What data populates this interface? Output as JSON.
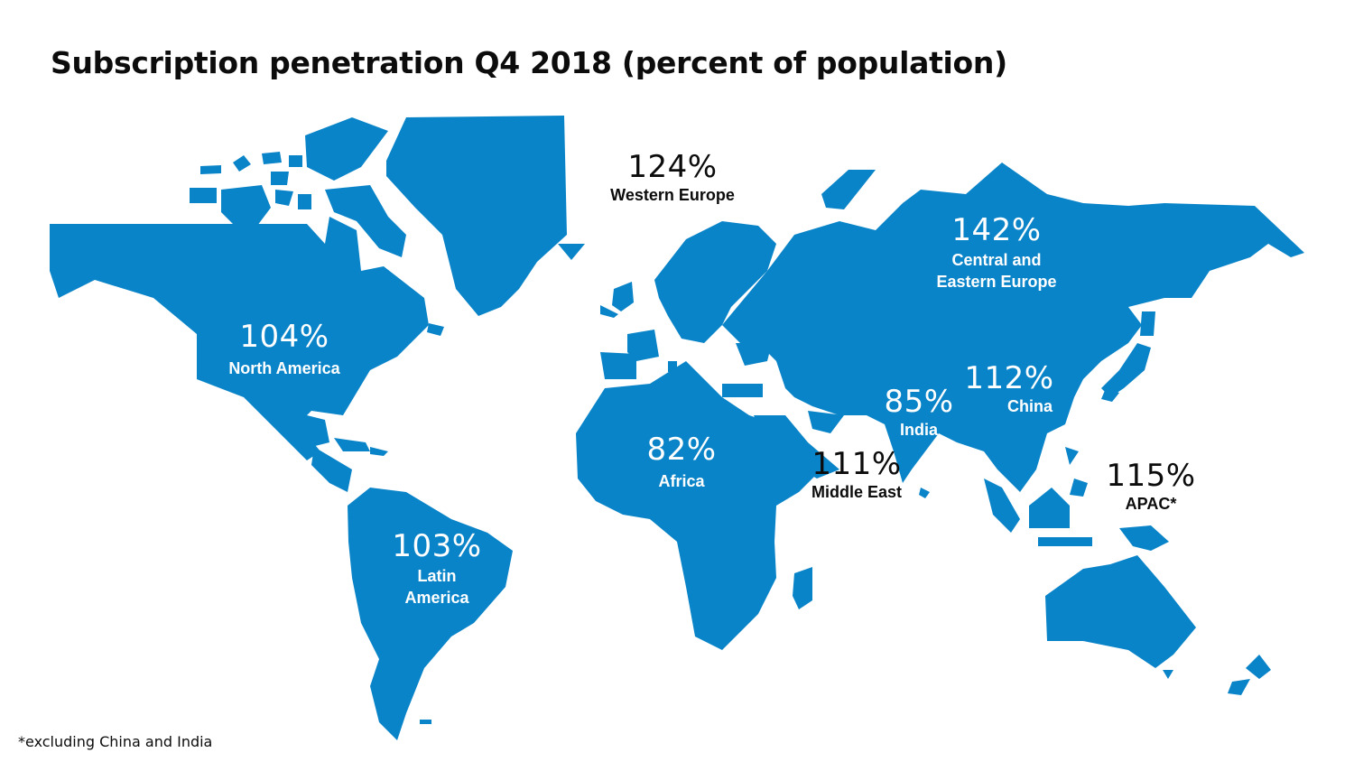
{
  "title": "Subscription penetration Q4 2018 (percent of population)",
  "footnote": "*excluding China and India",
  "map_color": "#0a84c8",
  "regions": {
    "north_america": {
      "value": "104%",
      "name": "North America"
    },
    "latin_america": {
      "value": "103%",
      "name_line1": "Latin",
      "name_line2": "America"
    },
    "western_europe": {
      "value": "124%",
      "name": "Western Europe"
    },
    "central_eastern_europe": {
      "value": "142%",
      "name_line1": "Central and",
      "name_line2": "Eastern Europe"
    },
    "africa": {
      "value": "82%",
      "name": "Africa"
    },
    "middle_east": {
      "value": "111%",
      "name": "Middle East"
    },
    "india": {
      "value": "85%",
      "name": "India"
    },
    "china": {
      "value": "112%",
      "name": "China"
    },
    "apac": {
      "value": "115%",
      "name": "APAC*"
    }
  }
}
